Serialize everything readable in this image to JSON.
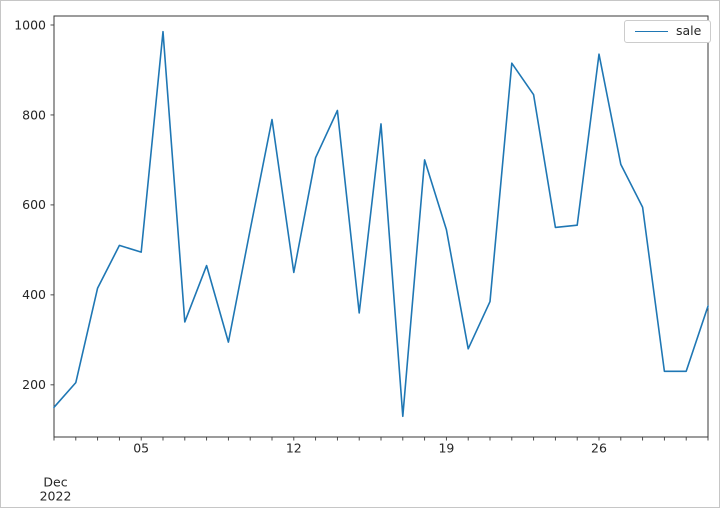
{
  "figure": {
    "colors": {
      "background": "#ffffff",
      "accent_line": "#1f77b4",
      "axis": "#3a3a3a",
      "tick_text": "#262626",
      "legend_border": "#cccccc"
    }
  },
  "chart_data": {
    "type": "line",
    "title": "",
    "xlabel": "",
    "ylabel": "",
    "grid": false,
    "x_axis_description": "Days of December 2022 (daily points, Dec 1 - Dec 31)",
    "x_days": [
      1,
      2,
      3,
      4,
      5,
      6,
      7,
      8,
      9,
      10,
      11,
      12,
      13,
      14,
      15,
      16,
      17,
      18,
      19,
      20,
      21,
      22,
      23,
      24,
      25,
      26,
      27,
      28,
      29,
      30,
      31
    ],
    "series": [
      {
        "name": "sale",
        "color": "#1f77b4",
        "values": [
          150,
          205,
          415,
          510,
          495,
          985,
          340,
          465,
          295,
          545,
          790,
          450,
          705,
          810,
          360,
          780,
          130,
          700,
          545,
          280,
          385,
          915,
          845,
          550,
          555,
          935,
          690,
          595,
          230,
          230,
          375
        ]
      }
    ],
    "x_ticks": [
      {
        "day": 1,
        "line1": "Dec",
        "line2": "2022"
      },
      {
        "day": 5,
        "line1": "05"
      },
      {
        "day": 12,
        "line1": "12"
      },
      {
        "day": 19,
        "line1": "19"
      },
      {
        "day": 26,
        "line1": "26"
      }
    ],
    "y_ticks": [
      200,
      400,
      600,
      800,
      1000
    ],
    "ylim": [
      84,
      1020
    ],
    "xlim_days": [
      1,
      31
    ],
    "legend": {
      "label": "sale",
      "position": "upper right"
    }
  }
}
